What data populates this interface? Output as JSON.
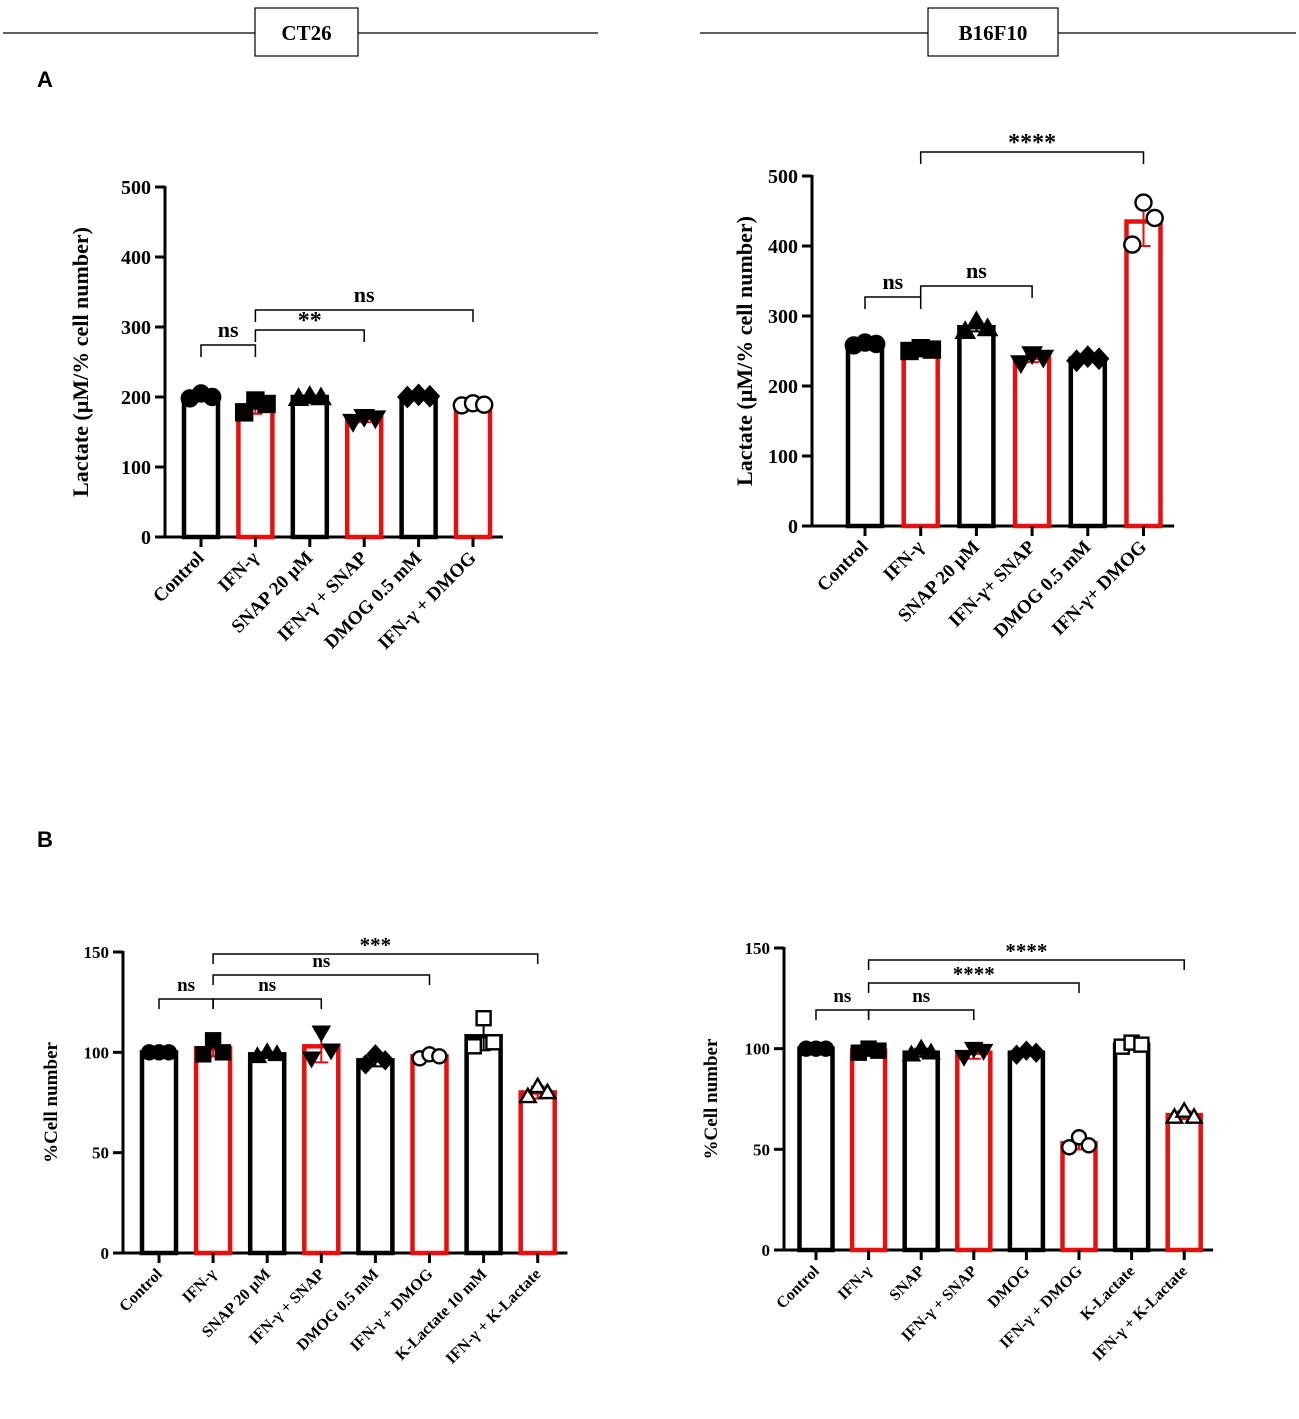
{
  "cell_line_headers": [
    "CT26",
    "B16F10"
  ],
  "panel_labels": [
    "A",
    "B"
  ],
  "colors": {
    "black": "#000000",
    "red": "#e8100e"
  },
  "chart_data": [
    {
      "id": "A-CT26",
      "type": "bar",
      "panel": "A",
      "cell_line": "CT26",
      "ylabel": "Lactate (µM/% cell number)",
      "ylim": [
        0,
        500
      ],
      "yticks": [
        0,
        100,
        200,
        300,
        400,
        500
      ],
      "categories": [
        "Control",
        "IFN-γ",
        "SNAP 20 µM",
        "IFN-γ + SNAP",
        "DMOG 0.5 mM",
        "IFN-γ + DMOG"
      ],
      "bar_colors": [
        "black",
        "red",
        "black",
        "red",
        "black",
        "red"
      ],
      "markers": [
        "circle-filled",
        "square-filled",
        "triangle-up-filled",
        "triangle-down-filled",
        "diamond-filled",
        "circle-open"
      ],
      "values": [
        202,
        188,
        200,
        170,
        201,
        189
      ],
      "errors": [
        3,
        12,
        2,
        6,
        2,
        3
      ],
      "points": [
        [
          198,
          205,
          200
        ],
        [
          178,
          195,
          190
        ],
        [
          198,
          201,
          199
        ],
        [
          165,
          172,
          170
        ],
        [
          200,
          203,
          201
        ],
        [
          188,
          191,
          189
        ]
      ],
      "comparisons": [
        {
          "from": 0,
          "to": 1,
          "label": "ns",
          "level": 0
        },
        {
          "from": 1,
          "to": 3,
          "label": "**",
          "level": 0
        },
        {
          "from": 1,
          "to": 5,
          "label": "ns",
          "level": 1
        }
      ]
    },
    {
      "id": "A-B16F10",
      "type": "bar",
      "panel": "A",
      "cell_line": "B16F10",
      "ylabel": "Lactate (µM/% cell number)",
      "ylim": [
        0,
        500
      ],
      "yticks": [
        0,
        100,
        200,
        300,
        400,
        500
      ],
      "categories": [
        "Control",
        "IFN-γ",
        "SNAP 20 µM",
        "IFN-γ+ SNAP",
        "DMOG 0.5 mM",
        "IFN-γ+ DMOG"
      ],
      "bar_colors": [
        "black",
        "red",
        "black",
        "red",
        "black",
        "red"
      ],
      "markers": [
        "circle-filled",
        "square-filled",
        "triangle-up-filled",
        "triangle-down-filled",
        "diamond-filled",
        "circle-open"
      ],
      "values": [
        260,
        252,
        284,
        240,
        239,
        435
      ],
      "errors": [
        2,
        3,
        6,
        6,
        4,
        35
      ],
      "points": [
        [
          258,
          262,
          260
        ],
        [
          250,
          254,
          252
        ],
        [
          278,
          292,
          282
        ],
        [
          233,
          246,
          241
        ],
        [
          236,
          242,
          239
        ],
        [
          402,
          462,
          440
        ]
      ],
      "comparisons": [
        {
          "from": 0,
          "to": 1,
          "label": "ns",
          "level": 0
        },
        {
          "from": 1,
          "to": 3,
          "label": "ns",
          "level": 0
        },
        {
          "from": 1,
          "to": 5,
          "label": "****",
          "level": 1
        }
      ]
    },
    {
      "id": "B-CT26",
      "type": "bar",
      "panel": "B",
      "cell_line": "CT26",
      "ylabel": "%Cell number",
      "ylim": [
        0,
        150
      ],
      "yticks": [
        0,
        50,
        100,
        150
      ],
      "categories": [
        "Control",
        "IFN-γ",
        "SNAP 20 µM",
        "IFN-γ + SNAP",
        "DMOG 0.5 mM",
        "IFN-γ + DMOG",
        "K-Lactate 10 mM",
        "IFN-γ + K-Lactate"
      ],
      "bar_colors": [
        "black",
        "red",
        "black",
        "red",
        "black",
        "red",
        "black",
        "red"
      ],
      "markers": [
        "circle-filled",
        "square-filled",
        "triangle-up-filled",
        "triangle-down-filled",
        "diamond-filled",
        "circle-open",
        "square-open",
        "triangle-up-open"
      ],
      "values": [
        100,
        102,
        99,
        103,
        96,
        98,
        108,
        80
      ],
      "errors": [
        0.5,
        4,
        1,
        8,
        3,
        2,
        7,
        3
      ],
      "points": [
        [
          100,
          100,
          100
        ],
        [
          99,
          106,
          100
        ],
        [
          98,
          100,
          99
        ],
        [
          97,
          110,
          101
        ],
        [
          94,
          99,
          96
        ],
        [
          97,
          99,
          98
        ],
        [
          103,
          117,
          105
        ],
        [
          78,
          83,
          80
        ]
      ],
      "comparisons": [
        {
          "from": 0,
          "to": 1,
          "label": "ns",
          "level": 0
        },
        {
          "from": 1,
          "to": 3,
          "label": "ns",
          "level": 0
        },
        {
          "from": 1,
          "to": 5,
          "label": "ns",
          "level": 1
        },
        {
          "from": 1,
          "to": 7,
          "label": "***",
          "level": 2
        }
      ]
    },
    {
      "id": "B-B16F10",
      "type": "bar",
      "panel": "B",
      "cell_line": "B16F10",
      "ylabel": "%Cell number",
      "ylim": [
        0,
        150
      ],
      "yticks": [
        0,
        50,
        100,
        150
      ],
      "categories": [
        "Control",
        "IFN-γ",
        "SNAP",
        "IFN-γ + SNAP",
        "DMOG",
        "IFN-γ + DMOG",
        "K-Lactate",
        "IFN-γ + K-Lactate"
      ],
      "bar_colors": [
        "black",
        "red",
        "black",
        "red",
        "black",
        "red",
        "black",
        "red"
      ],
      "markers": [
        "circle-filled",
        "square-filled",
        "triangle-up-filled",
        "triangle-down-filled",
        "diamond-filled",
        "circle-open",
        "square-open",
        "triangle-up-open"
      ],
      "values": [
        100,
        99,
        98,
        98,
        98,
        53,
        102,
        67
      ],
      "errors": [
        0.5,
        1,
        2,
        3,
        1,
        3,
        2,
        2
      ],
      "points": [
        [
          100,
          100,
          100
        ],
        [
          98,
          100,
          99
        ],
        [
          97,
          100,
          98
        ],
        [
          96,
          100,
          99
        ],
        [
          97,
          99,
          98
        ],
        [
          51,
          56,
          52
        ],
        [
          101,
          103,
          102
        ],
        [
          66,
          69,
          66
        ]
      ],
      "comparisons": [
        {
          "from": 0,
          "to": 1,
          "label": "ns",
          "level": 0
        },
        {
          "from": 1,
          "to": 3,
          "label": "ns",
          "level": 0
        },
        {
          "from": 1,
          "to": 5,
          "label": "****",
          "level": 1
        },
        {
          "from": 1,
          "to": 7,
          "label": "****",
          "level": 2
        }
      ]
    }
  ]
}
